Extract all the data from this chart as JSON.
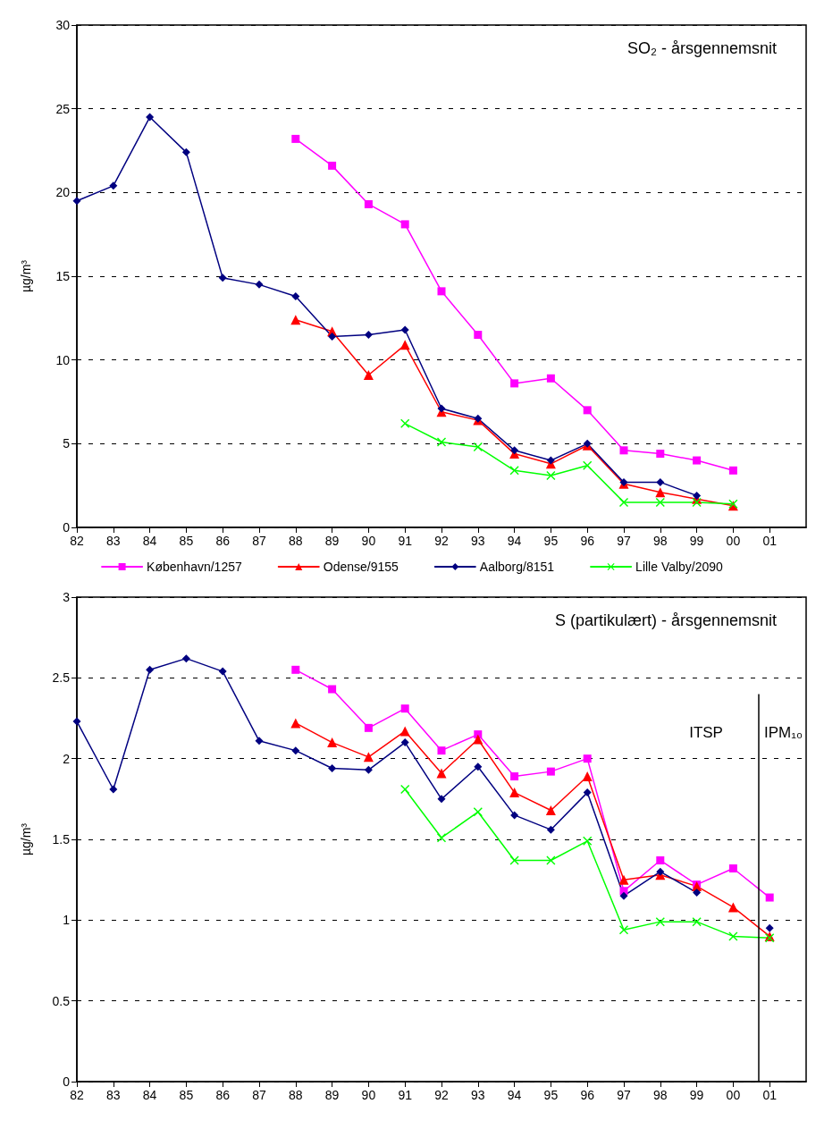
{
  "chart_data": [
    {
      "type": "line",
      "title": "SO₂ - årsgennemsnit",
      "ylabel": "µg/m³",
      "x": [
        1982,
        1983,
        1984,
        1985,
        1986,
        1987,
        1988,
        1989,
        1990,
        1991,
        1992,
        1993,
        1994,
        1995,
        1996,
        1997,
        1998,
        1999,
        2000
      ],
      "xlim": [
        1982,
        2002
      ],
      "xticks": [
        {
          "value": 1982,
          "label": "82"
        },
        {
          "value": 1983,
          "label": "83"
        },
        {
          "value": 1984,
          "label": "84"
        },
        {
          "value": 1985,
          "label": "85"
        },
        {
          "value": 1986,
          "label": "86"
        },
        {
          "value": 1987,
          "label": "87"
        },
        {
          "value": 1988,
          "label": "88"
        },
        {
          "value": 1989,
          "label": "89"
        },
        {
          "value": 1990,
          "label": "90"
        },
        {
          "value": 1991,
          "label": "91"
        },
        {
          "value": 1992,
          "label": "92"
        },
        {
          "value": 1993,
          "label": "93"
        },
        {
          "value": 1994,
          "label": "94"
        },
        {
          "value": 1995,
          "label": "95"
        },
        {
          "value": 1996,
          "label": "96"
        },
        {
          "value": 1997,
          "label": "97"
        },
        {
          "value": 1998,
          "label": "98"
        },
        {
          "value": 1999,
          "label": "99"
        },
        {
          "value": 2000,
          "label": "00"
        },
        {
          "value": 2001,
          "label": "01"
        }
      ],
      "ylim": [
        0,
        30
      ],
      "yticks": [
        0,
        5,
        10,
        15,
        20,
        25,
        30
      ],
      "grid": "y",
      "legend": "bottom",
      "series": [
        {
          "name": "København/1257",
          "color": "#ff00ff",
          "marker": "square",
          "values": [
            null,
            null,
            null,
            null,
            null,
            null,
            23.2,
            21.6,
            19.3,
            18.1,
            14.1,
            11.5,
            8.6,
            8.9,
            7.0,
            4.6,
            4.4,
            4.0,
            3.4
          ]
        },
        {
          "name": "Odense/9155",
          "color": "#ff0000",
          "marker": "triangle",
          "values": [
            null,
            null,
            null,
            null,
            null,
            null,
            12.4,
            11.7,
            9.1,
            10.9,
            6.9,
            6.4,
            4.4,
            3.8,
            4.9,
            2.6,
            2.1,
            1.7,
            1.3
          ]
        },
        {
          "name": "Aalborg/8151",
          "color": "#000080",
          "marker": "diamond",
          "values": [
            19.5,
            20.4,
            24.5,
            22.4,
            14.9,
            14.5,
            13.8,
            11.4,
            11.5,
            11.8,
            7.1,
            6.5,
            4.6,
            4.0,
            5.0,
            2.7,
            2.7,
            1.9,
            null
          ]
        },
        {
          "name": "Lille Valby/2090",
          "color": "#00ff00",
          "marker": "cross",
          "values": [
            null,
            null,
            null,
            null,
            null,
            null,
            null,
            null,
            null,
            6.2,
            5.1,
            4.8,
            3.4,
            3.1,
            3.7,
            1.5,
            1.5,
            1.5,
            1.4
          ]
        }
      ]
    },
    {
      "type": "line",
      "title": "S (partikulært) - årsgennemsnit",
      "ylabel": "µg/m³",
      "x": [
        1982,
        1983,
        1984,
        1985,
        1986,
        1987,
        1988,
        1989,
        1990,
        1991,
        1992,
        1993,
        1994,
        1995,
        1996,
        1997,
        1998,
        1999,
        2000,
        2001
      ],
      "xlim": [
        1982,
        2002
      ],
      "xticks": [
        {
          "value": 1982,
          "label": "82"
        },
        {
          "value": 1983,
          "label": "83"
        },
        {
          "value": 1984,
          "label": "84"
        },
        {
          "value": 1985,
          "label": "85"
        },
        {
          "value": 1986,
          "label": "86"
        },
        {
          "value": 1987,
          "label": "87"
        },
        {
          "value": 1988,
          "label": "88"
        },
        {
          "value": 1989,
          "label": "89"
        },
        {
          "value": 1990,
          "label": "90"
        },
        {
          "value": 1991,
          "label": "91"
        },
        {
          "value": 1992,
          "label": "92"
        },
        {
          "value": 1993,
          "label": "93"
        },
        {
          "value": 1994,
          "label": "94"
        },
        {
          "value": 1995,
          "label": "95"
        },
        {
          "value": 1996,
          "label": "96"
        },
        {
          "value": 1997,
          "label": "97"
        },
        {
          "value": 1998,
          "label": "98"
        },
        {
          "value": 1999,
          "label": "99"
        },
        {
          "value": 2000,
          "label": "00"
        },
        {
          "value": 2001,
          "label": "01"
        }
      ],
      "ylim": [
        0,
        3
      ],
      "yticks": [
        0,
        0.5,
        1,
        1.5,
        2,
        2.5,
        3
      ],
      "grid": "y",
      "ref_lines": [
        {
          "axis": "x",
          "value": 2000.7,
          "color": "#000000",
          "line_style": "solid"
        }
      ],
      "annotations": [
        "ITSP",
        "IPM₁₀"
      ],
      "series": [
        {
          "color": "#ff00ff",
          "marker": "square",
          "values": [
            null,
            null,
            null,
            null,
            null,
            null,
            2.55,
            2.43,
            2.19,
            2.31,
            2.05,
            2.15,
            1.89,
            1.92,
            2.0,
            1.18,
            1.37,
            1.22,
            1.32,
            1.14
          ]
        },
        {
          "color": "#ff0000",
          "marker": "triangle",
          "values": [
            null,
            null,
            null,
            null,
            null,
            null,
            2.22,
            2.1,
            2.01,
            2.17,
            1.91,
            2.12,
            1.79,
            1.68,
            1.89,
            1.25,
            1.28,
            1.21,
            1.08,
            0.9
          ]
        },
        {
          "color": "#000080",
          "marker": "diamond",
          "values": [
            2.23,
            1.81,
            2.55,
            2.62,
            2.54,
            2.11,
            2.05,
            1.94,
            1.93,
            2.1,
            1.75,
            1.95,
            1.65,
            1.56,
            1.79,
            1.15,
            1.3,
            1.17,
            null,
            0.95
          ]
        },
        {
          "color": "#00ff00",
          "marker": "cross",
          "values": [
            null,
            null,
            null,
            null,
            null,
            null,
            null,
            null,
            null,
            1.81,
            1.51,
            1.67,
            1.37,
            1.37,
            1.49,
            0.94,
            0.99,
            0.99,
            0.9,
            0.89
          ]
        }
      ]
    }
  ]
}
